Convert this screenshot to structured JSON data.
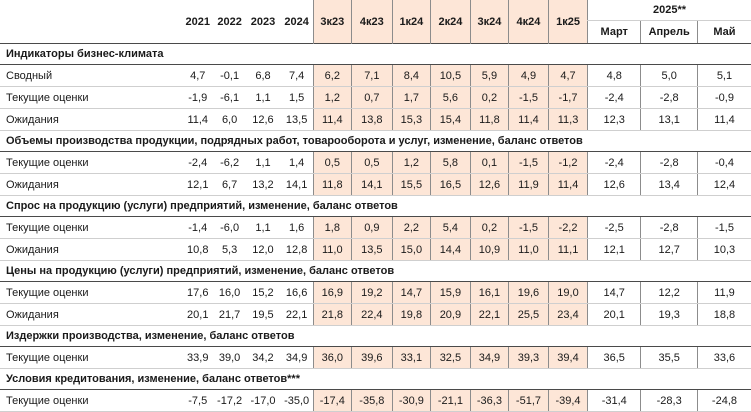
{
  "header": {
    "years": [
      "2021",
      "2022",
      "2023",
      "2024"
    ],
    "quarters": [
      "3к23",
      "4к23",
      "1к24",
      "2к24",
      "3к24",
      "4к24",
      "1к25"
    ],
    "month_group": "2025**",
    "months": [
      "Март",
      "Апрель",
      "Май"
    ]
  },
  "sections": [
    {
      "title": "Индикаторы бизнес-климата",
      "rows": [
        {
          "label": "Сводный",
          "values": [
            "4,7",
            "-0,1",
            "6,8",
            "7,4",
            "6,2",
            "7,1",
            "8,4",
            "10,5",
            "5,9",
            "4,9",
            "4,7",
            "4,8",
            "5,0",
            "5,1"
          ]
        },
        {
          "label": "Текущие оценки",
          "values": [
            "-1,9",
            "-6,1",
            "1,1",
            "1,5",
            "1,2",
            "0,7",
            "1,7",
            "5,6",
            "0,2",
            "-1,5",
            "-1,7",
            "-2,4",
            "-2,8",
            "-0,9"
          ]
        },
        {
          "label": "Ожидания",
          "values": [
            "11,4",
            "6,0",
            "12,6",
            "13,5",
            "11,4",
            "13,8",
            "15,3",
            "15,4",
            "11,8",
            "11,4",
            "11,3",
            "12,3",
            "13,1",
            "11,4"
          ]
        }
      ]
    },
    {
      "title": "Объемы производства продукции, подрядных работ, товарооборота и услуг, изменение, баланс ответов",
      "rows": [
        {
          "label": "Текущие оценки",
          "values": [
            "-2,4",
            "-6,2",
            "1,1",
            "1,4",
            "0,5",
            "0,5",
            "1,2",
            "5,8",
            "0,1",
            "-1,5",
            "-1,2",
            "-2,4",
            "-2,8",
            "-0,4"
          ]
        },
        {
          "label": "Ожидания",
          "values": [
            "12,1",
            "6,7",
            "13,2",
            "14,1",
            "11,8",
            "14,1",
            "15,5",
            "16,5",
            "12,6",
            "11,9",
            "11,4",
            "12,6",
            "13,4",
            "12,4"
          ]
        }
      ]
    },
    {
      "title": "Спрос на продукцию (услуги) предприятий, изменение, баланс ответов",
      "rows": [
        {
          "label": "Текущие оценки",
          "values": [
            "-1,4",
            "-6,0",
            "1,1",
            "1,6",
            "1,8",
            "0,9",
            "2,2",
            "5,4",
            "0,2",
            "-1,5",
            "-2,2",
            "-2,5",
            "-2,8",
            "-1,5"
          ]
        },
        {
          "label": "Ожидания",
          "values": [
            "10,8",
            "5,3",
            "12,0",
            "12,8",
            "11,0",
            "13,5",
            "15,0",
            "14,4",
            "10,9",
            "11,0",
            "11,1",
            "12,1",
            "12,7",
            "10,3"
          ]
        }
      ]
    },
    {
      "title": "Цены на продукцию (услуги) предприятий, изменение, баланс ответов",
      "rows": [
        {
          "label": "Текущие оценки",
          "values": [
            "17,6",
            "16,0",
            "15,2",
            "16,6",
            "16,9",
            "19,2",
            "14,7",
            "15,9",
            "16,1",
            "19,6",
            "19,0",
            "14,7",
            "12,2",
            "11,9"
          ]
        },
        {
          "label": "Ожидания",
          "values": [
            "20,1",
            "21,7",
            "19,5",
            "22,1",
            "21,8",
            "22,4",
            "19,8",
            "20,9",
            "22,1",
            "25,5",
            "23,4",
            "20,1",
            "19,3",
            "18,8"
          ]
        }
      ]
    },
    {
      "title": "Издержки производства, изменение, баланс ответов",
      "rows": [
        {
          "label": "Текущие оценки",
          "values": [
            "33,9",
            "39,0",
            "34,2",
            "34,9",
            "36,0",
            "39,6",
            "33,1",
            "32,5",
            "34,9",
            "39,3",
            "39,4",
            "36,5",
            "35,5",
            "33,6"
          ]
        }
      ]
    },
    {
      "title": "Условия кредитования, изменение, баланс ответов***",
      "rows": [
        {
          "label": "Текущие оценки",
          "values": [
            "-7,5",
            "-17,2",
            "-17,0",
            "-35,0",
            "-17,4",
            "-35,8",
            "-30,9",
            "-21,1",
            "-36,3",
            "-51,7",
            "-39,4",
            "-31,4",
            "-28,3",
            "-24,8"
          ]
        }
      ]
    }
  ]
}
